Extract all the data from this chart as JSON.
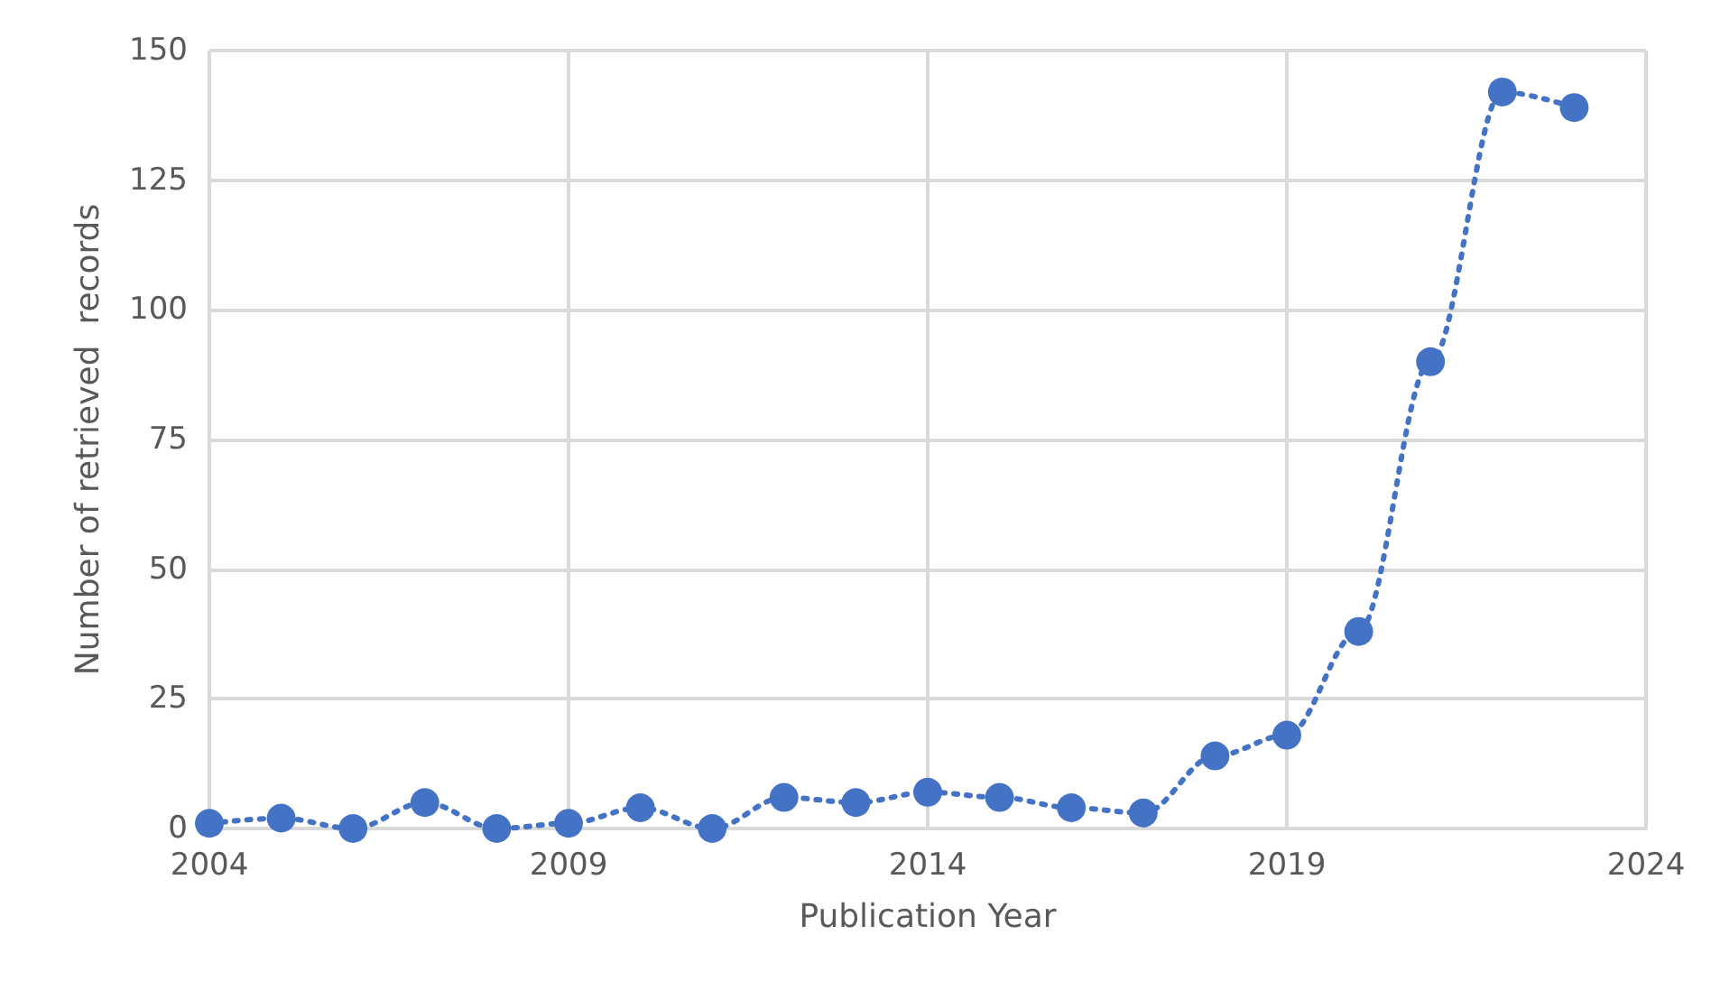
{
  "chart_data": {
    "type": "line",
    "xlabel": "Publication Year",
    "ylabel": "Number of retrieved  records",
    "x": [
      2004,
      2005,
      2006,
      2007,
      2008,
      2009,
      2010,
      2011,
      2012,
      2013,
      2014,
      2015,
      2016,
      2017,
      2018,
      2019,
      2020,
      2021,
      2022,
      2023
    ],
    "series": [
      {
        "color": "#4472c4",
        "values": [
          1,
          2,
          0,
          5,
          0,
          1,
          4,
          0,
          6,
          5,
          7,
          6,
          4,
          3,
          14,
          18,
          38,
          90,
          142,
          139
        ]
      }
    ],
    "xlim": [
      2004,
      2024
    ],
    "xticks": [
      2004,
      2009,
      2014,
      2019,
      2024
    ],
    "ylim": [
      0,
      150
    ],
    "yticks": [
      0,
      25,
      50,
      75,
      100,
      125,
      150
    ],
    "grid": true,
    "marker": "circle",
    "line_style": "dotted"
  }
}
